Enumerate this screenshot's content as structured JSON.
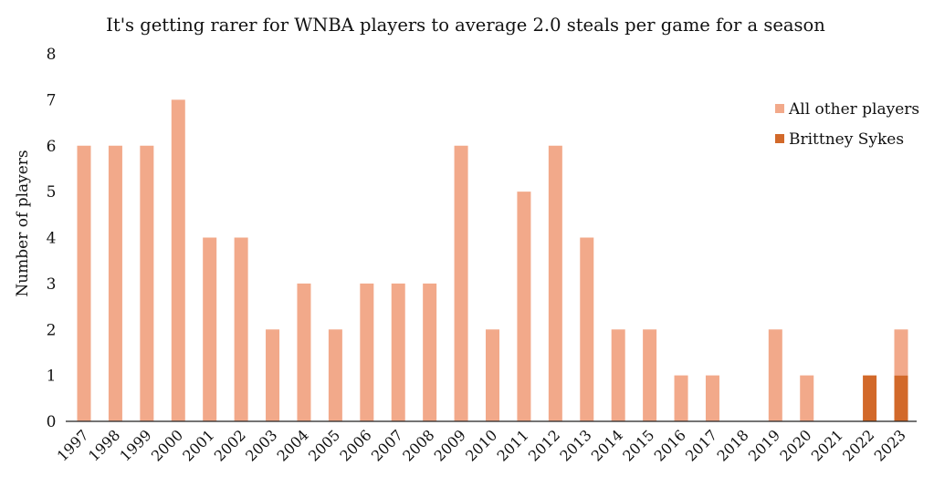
{
  "chart_data": {
    "type": "bar",
    "stacked": true,
    "title": "It's getting rarer for WNBA players to average 2.0 steals per game for a season",
    "xlabel": "",
    "ylabel": "Number of players",
    "ylim": [
      0,
      8
    ],
    "yticks": [
      0,
      1,
      2,
      3,
      4,
      5,
      6,
      7,
      8
    ],
    "grid": false,
    "legend_position": "top-right",
    "categories": [
      "1997",
      "1998",
      "1999",
      "2000",
      "2001",
      "2002",
      "2003",
      "2004",
      "2005",
      "2006",
      "2007",
      "2008",
      "2009",
      "2010",
      "2011",
      "2012",
      "2013",
      "2014",
      "2015",
      "2016",
      "2017",
      "2018",
      "2019",
      "2020",
      "2021",
      "2022",
      "2023"
    ],
    "series": [
      {
        "name": "Brittney Sykes",
        "color": "#D2692A",
        "values": [
          0,
          0,
          0,
          0,
          0,
          0,
          0,
          0,
          0,
          0,
          0,
          0,
          0,
          0,
          0,
          0,
          0,
          0,
          0,
          0,
          0,
          0,
          0,
          0,
          0,
          1,
          1
        ]
      },
      {
        "name": "All other players",
        "color": "#F2A98A",
        "values": [
          6,
          6,
          6,
          7,
          4,
          4,
          2,
          3,
          2,
          3,
          3,
          3,
          6,
          2,
          5,
          6,
          4,
          2,
          2,
          1,
          1,
          0,
          2,
          1,
          0,
          0,
          1
        ]
      }
    ],
    "legend_order": [
      "All other players",
      "Brittney Sykes"
    ]
  }
}
